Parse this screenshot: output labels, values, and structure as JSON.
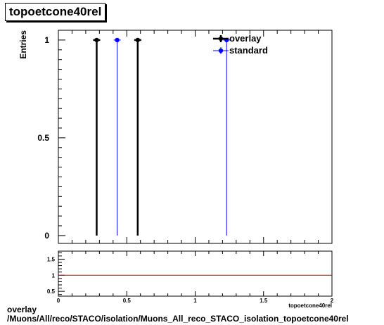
{
  "title": "topoetcone40rel",
  "footer": {
    "line1": "overlay",
    "line2": "/Muons/All/reco/STACO/isolation/Muons_All_reco_STACO_isolation_topoetcone40rel"
  },
  "colors": {
    "overlay": "#000000",
    "standard": "#0000ff",
    "ratio_line": "#cc0000"
  },
  "chart_data": [
    {
      "type": "scatter",
      "ylabel": "Entries",
      "xlim": [
        0,
        2
      ],
      "ylim": [
        -0.04,
        1.05
      ],
      "yticks": [
        0,
        0.5,
        1
      ],
      "ytick_labels": [
        "0",
        "0.5",
        "1"
      ],
      "legend": "top-right",
      "series": [
        {
          "name": "overlay",
          "color": "#000000",
          "x": [
            0.28,
            0.58
          ],
          "y": [
            1,
            1
          ]
        },
        {
          "name": "standard",
          "color": "#0000ff",
          "x": [
            0.43,
            1.23
          ],
          "y": [
            1,
            1
          ]
        }
      ]
    },
    {
      "type": "line",
      "xlabel": "topoetcone40rel",
      "xlim": [
        0,
        2
      ],
      "ylim": [
        0.35,
        1.75
      ],
      "xticks": [
        0,
        0.5,
        1,
        1.5,
        2
      ],
      "xtick_labels": [
        "0",
        "0.5",
        "1",
        "1.5",
        "2"
      ],
      "yticks": [
        0.5,
        1,
        1.5
      ],
      "ytick_labels": [
        "0.5",
        "1",
        "1.5"
      ],
      "reference_line": 1
    }
  ]
}
